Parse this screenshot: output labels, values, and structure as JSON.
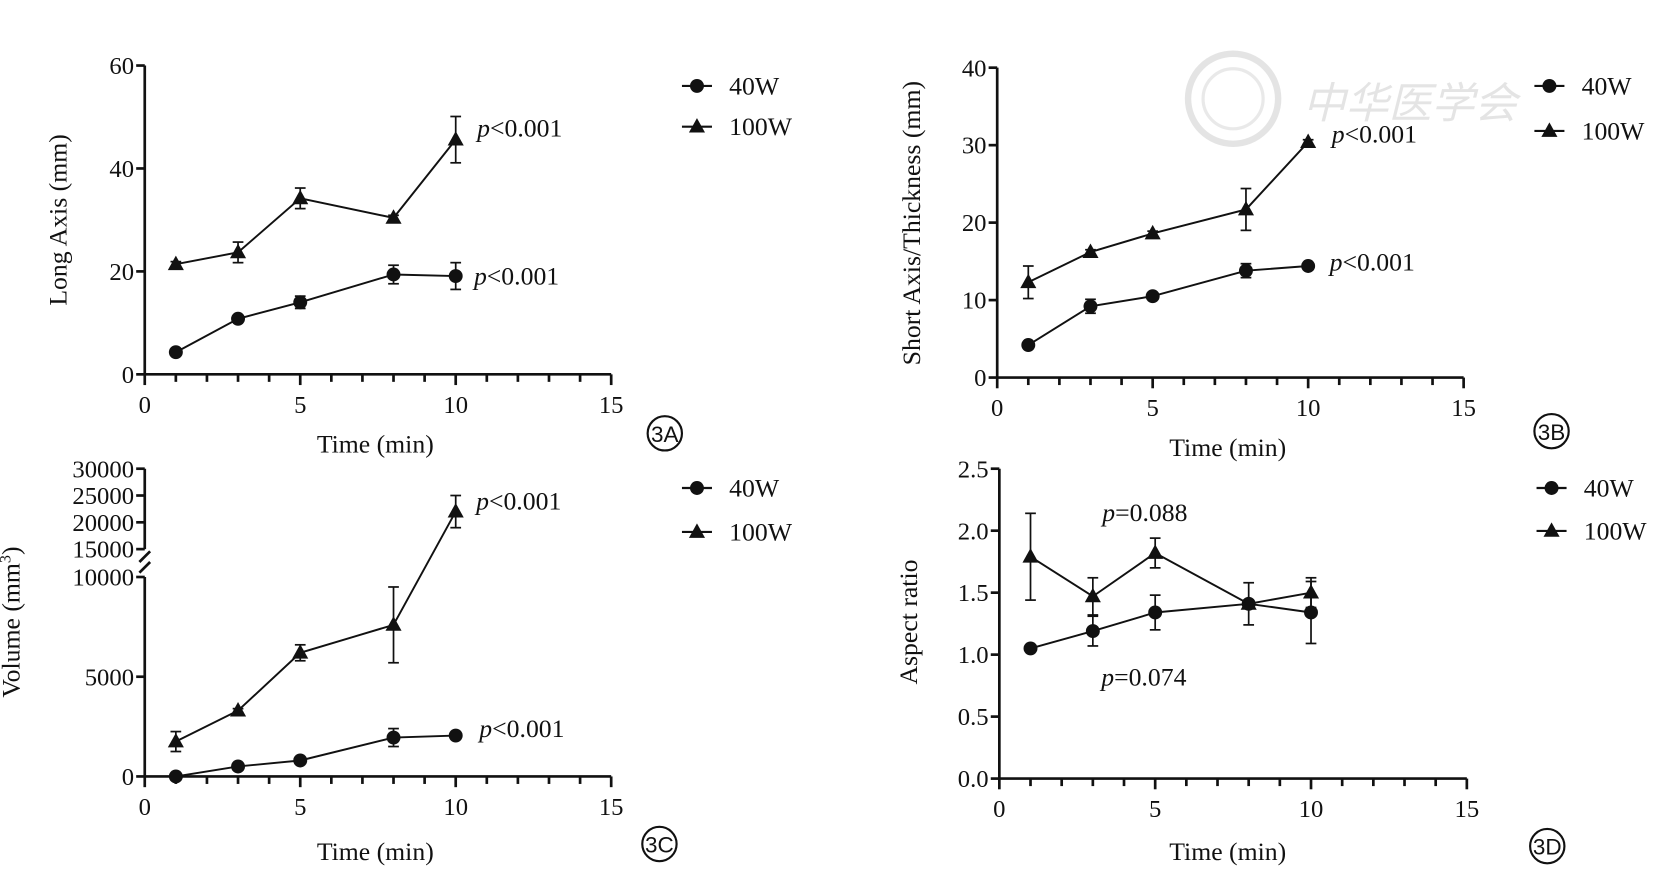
{
  "watermark": "中华医学会",
  "chart_data": [
    {
      "id": "3A",
      "type": "line",
      "panel_label": "3A",
      "xlabel": "Time (min)",
      "ylabel": "Long Axis (mm)",
      "xlim": [
        0,
        15
      ],
      "xticks": [
        0,
        5,
        10,
        15
      ],
      "ylim": [
        0,
        60
      ],
      "yticks": [
        0,
        20,
        40,
        60
      ],
      "x": [
        1,
        3,
        5,
        8,
        10
      ],
      "series": [
        {
          "name": "40W",
          "marker": "circle",
          "values": [
            4.3,
            10.8,
            14.0,
            19.4,
            19.1
          ],
          "errors": [
            0.5,
            0.6,
            1.2,
            1.8,
            2.6
          ]
        },
        {
          "name": "100W",
          "marker": "triangle",
          "values": [
            21.4,
            23.7,
            34.2,
            30.4,
            45.6
          ],
          "errors": [
            0.5,
            2.0,
            2.0,
            0.5,
            4.5
          ]
        }
      ],
      "annotations": [
        {
          "text": "<0.001",
          "prefix": "p",
          "series": "100W"
        },
        {
          "text": "<0.001",
          "prefix": "p",
          "series": "40W"
        }
      ],
      "legend": "top-right"
    },
    {
      "id": "3B",
      "type": "line",
      "panel_label": "3B",
      "xlabel": "Time (min)",
      "ylabel": "Short Axis/Thickness (mm)",
      "xlim": [
        0,
        15
      ],
      "xticks": [
        0,
        5,
        10,
        15
      ],
      "ylim": [
        0,
        40
      ],
      "yticks": [
        0,
        10,
        20,
        30,
        40
      ],
      "x": [
        1,
        3,
        5,
        8,
        10
      ],
      "series": [
        {
          "name": "40W",
          "marker": "circle",
          "values": [
            4.2,
            9.2,
            10.5,
            13.8,
            14.4
          ],
          "errors": [
            0.4,
            0.9,
            0.3,
            0.9,
            0.3
          ]
        },
        {
          "name": "100W",
          "marker": "triangle",
          "values": [
            12.3,
            16.2,
            18.6,
            21.7,
            30.4
          ],
          "errors": [
            2.1,
            0.3,
            0.3,
            2.7,
            0.3
          ]
        }
      ],
      "annotations": [
        {
          "text": "<0.001",
          "prefix": "p",
          "series": "100W"
        },
        {
          "text": "<0.001",
          "prefix": "p",
          "series": "40W"
        }
      ],
      "legend": "top-right"
    },
    {
      "id": "3C",
      "type": "line",
      "panel_label": "3C",
      "xlabel": "Time (min)",
      "ylabel": "Volume (mm",
      "ylabel_sup": "3",
      "ylabel_end": ")",
      "xlim": [
        0,
        15
      ],
      "xticks": [
        0,
        5,
        10,
        15
      ],
      "ylim": [
        0,
        30000
      ],
      "ybreak": [
        10000,
        15000
      ],
      "yticks": [
        0,
        5000,
        10000,
        15000,
        20000,
        25000,
        30000
      ],
      "x": [
        1,
        3,
        5,
        8,
        10
      ],
      "series": [
        {
          "name": "40W",
          "marker": "circle",
          "values": [
            0,
            500,
            800,
            1950,
            2050
          ],
          "errors": [
            100,
            100,
            100,
            450,
            100
          ]
        },
        {
          "name": "100W",
          "marker": "triangle",
          "values": [
            1750,
            3300,
            6200,
            7600,
            22000
          ],
          "errors": [
            500,
            100,
            400,
            1900,
            3000
          ]
        }
      ],
      "annotations": [
        {
          "text": "<0.001",
          "prefix": "p",
          "series": "100W"
        },
        {
          "text": "<0.001",
          "prefix": "p",
          "series": "40W"
        }
      ],
      "legend": "top-right"
    },
    {
      "id": "3D",
      "type": "line",
      "panel_label": "3D",
      "xlabel": "Time (min)",
      "ylabel": "Aspect ratio",
      "xlim": [
        0,
        15
      ],
      "xticks": [
        0,
        5,
        10,
        15
      ],
      "ylim": [
        0,
        2.5
      ],
      "yticks": [
        0.0,
        0.5,
        1.0,
        1.5,
        2.0,
        2.5
      ],
      "x": [
        1,
        3,
        5,
        8,
        10
      ],
      "series": [
        {
          "name": "40W",
          "marker": "circle",
          "values": [
            1.05,
            1.19,
            1.34,
            1.41,
            1.34
          ],
          "errors": [
            0.02,
            0.12,
            0.14,
            0.03,
            0.25
          ]
        },
        {
          "name": "100W",
          "marker": "triangle",
          "values": [
            1.79,
            1.47,
            1.82,
            1.41,
            1.5
          ],
          "errors": [
            0.35,
            0.15,
            0.12,
            0.17,
            0.12
          ]
        }
      ],
      "annotations": [
        {
          "text": "=0.088",
          "prefix": "p",
          "series": "100W"
        },
        {
          "text": "=0.074",
          "prefix": "p",
          "series": "40W"
        }
      ],
      "legend": "top-right"
    }
  ]
}
